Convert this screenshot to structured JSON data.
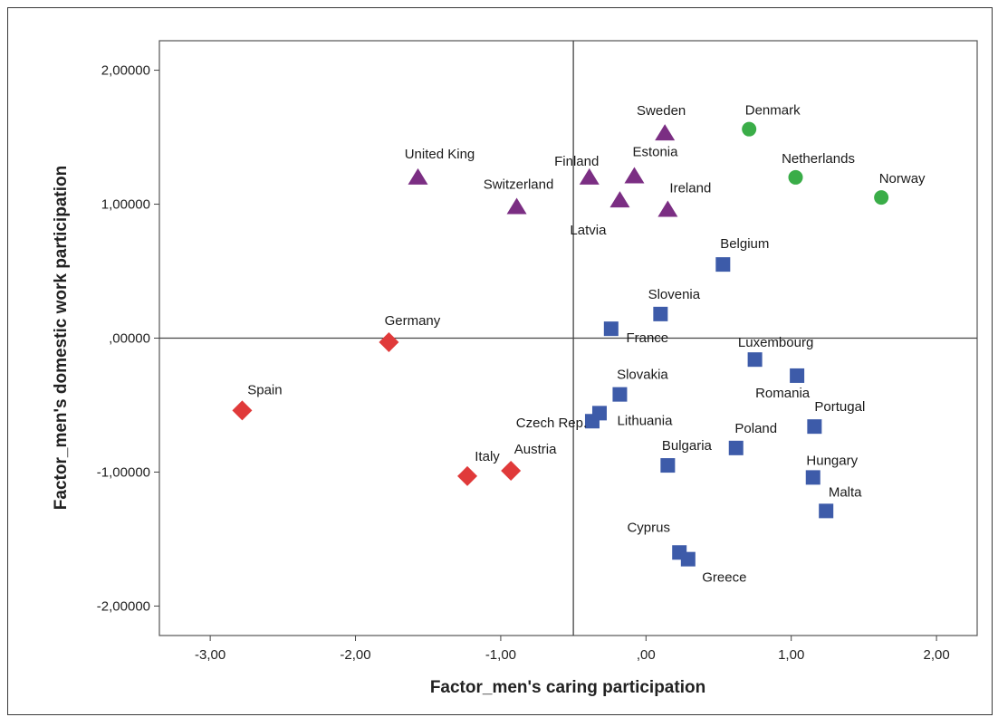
{
  "chart_data": {
    "type": "scatter",
    "xlabel": "Factor_men's caring participation",
    "ylabel": "Factor_men's domestic work participation",
    "xlim": [
      -3.35,
      2.28
    ],
    "ylim": [
      -2.22,
      2.22
    ],
    "x_ticks": [
      -3,
      -2,
      -1,
      0,
      1,
      2
    ],
    "x_tick_labels": [
      "-3,00",
      "-2,00",
      "-1,00",
      ",00",
      "1,00",
      "2,00"
    ],
    "y_ticks": [
      2,
      1,
      0,
      -1,
      -2
    ],
    "y_tick_labels": [
      "2,00000",
      "1,00000",
      ",00000",
      "-1,00000",
      "-2,00000"
    ],
    "reference_lines": {
      "x": -0.5,
      "y": 0
    },
    "grid": false,
    "legend": "none",
    "series": [
      {
        "marker": "triangle",
        "color": "#7b2e83",
        "points": [
          {
            "label": "United King",
            "x": -1.57,
            "y": 1.2
          },
          {
            "label": "Switzerland",
            "x": -0.89,
            "y": 0.98
          },
          {
            "label": "Finland",
            "x": -0.39,
            "y": 1.2
          },
          {
            "label": "Latvia",
            "x": -0.18,
            "y": 1.03
          },
          {
            "label": "Estonia",
            "x": -0.08,
            "y": 1.21
          },
          {
            "label": "Sweden",
            "x": 0.13,
            "y": 1.53
          },
          {
            "label": "Ireland",
            "x": 0.15,
            "y": 0.96
          }
        ]
      },
      {
        "marker": "circle",
        "color": "#3aad48",
        "points": [
          {
            "label": "Denmark",
            "x": 0.71,
            "y": 1.56
          },
          {
            "label": "Netherlands",
            "x": 1.03,
            "y": 1.2
          },
          {
            "label": "Norway",
            "x": 1.62,
            "y": 1.05
          }
        ]
      },
      {
        "marker": "square",
        "color": "#3d5ba9",
        "points": [
          {
            "label": "Belgium",
            "x": 0.53,
            "y": 0.55
          },
          {
            "label": "Slovenia",
            "x": 0.1,
            "y": 0.18
          },
          {
            "label": "France",
            "x": -0.24,
            "y": 0.07
          },
          {
            "label": "Luxembourg",
            "x": 0.75,
            "y": -0.16
          },
          {
            "label": "Romania",
            "x": 1.04,
            "y": -0.28
          },
          {
            "label": "Slovakia",
            "x": -0.18,
            "y": -0.42
          },
          {
            "label": "Czech Rep.",
            "x": -0.37,
            "y": -0.62
          },
          {
            "label": "Lithuania",
            "x": -0.32,
            "y": -0.56
          },
          {
            "label": "Portugal",
            "x": 1.16,
            "y": -0.66
          },
          {
            "label": "Poland",
            "x": 0.62,
            "y": -0.82
          },
          {
            "label": "Bulgaria",
            "x": 0.15,
            "y": -0.95
          },
          {
            "label": "Hungary",
            "x": 1.15,
            "y": -1.04
          },
          {
            "label": "Malta",
            "x": 1.24,
            "y": -1.29
          },
          {
            "label": "Cyprus",
            "x": 0.23,
            "y": -1.6
          },
          {
            "label": "Greece",
            "x": 0.29,
            "y": -1.65
          }
        ]
      },
      {
        "marker": "diamond",
        "color": "#e03a3a",
        "points": [
          {
            "label": "Germany",
            "x": -1.77,
            "y": -0.03
          },
          {
            "label": "Spain",
            "x": -2.78,
            "y": -0.54
          },
          {
            "label": "Austria",
            "x": -0.93,
            "y": -0.99
          },
          {
            "label": "Italy",
            "x": -1.23,
            "y": -1.03
          }
        ]
      }
    ]
  }
}
